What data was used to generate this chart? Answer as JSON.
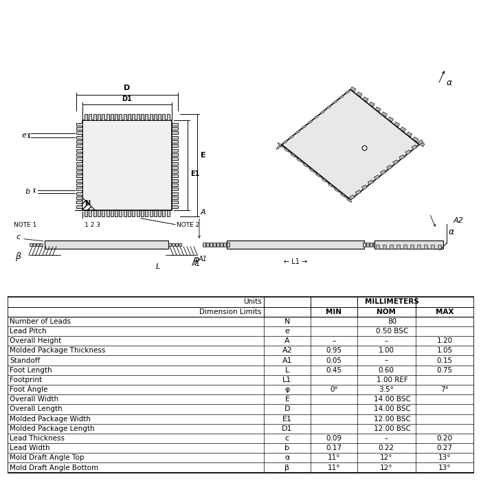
{
  "table_headers": [
    "",
    "Units",
    "MILLIMETERS",
    "",
    ""
  ],
  "table_subheaders": [
    "",
    "Dimension Limits",
    "MIN",
    "NOM",
    "MAX"
  ],
  "table_rows": [
    [
      "Number of Leads",
      "N",
      "",
      "80",
      ""
    ],
    [
      "Lead Pitch",
      "e",
      "",
      "0.50 BSC",
      ""
    ],
    [
      "Overall Height",
      "A",
      "–",
      "–",
      "1.20"
    ],
    [
      "Molded Package Thickness",
      "A2",
      "0.95",
      "1.00",
      "1.05"
    ],
    [
      "Standoff",
      "A1",
      "0.05",
      "–",
      "0.15"
    ],
    [
      "Foot Length",
      "L",
      "0.45",
      "0.60",
      "0.75"
    ],
    [
      "Footprint",
      "L1",
      "",
      "1.00 REF",
      ""
    ],
    [
      "Foot Angle",
      "φ",
      "0°",
      "3.5°",
      "7°"
    ],
    [
      "Overall Width",
      "E",
      "",
      "14.00 BSC",
      ""
    ],
    [
      "Overall Length",
      "D",
      "",
      "14.00 BSC",
      ""
    ],
    [
      "Molded Package Width",
      "E1",
      "",
      "12.00 BSC",
      ""
    ],
    [
      "Molded Package Length",
      "D1",
      "",
      "12.00 BSC",
      ""
    ],
    [
      "Lead Thickness",
      "c",
      "0.09",
      "–",
      "0.20"
    ],
    [
      "Lead Width",
      "b",
      "0.17",
      "0.22",
      "0.27"
    ],
    [
      "Mold Draft Angle Top",
      "α",
      "11°",
      "12°",
      "13°"
    ],
    [
      "Mold Draft Angle Bottom",
      "β",
      "11°",
      "12°",
      "13°"
    ]
  ],
  "bg_color": "#ffffff",
  "line_color": "#000000",
  "text_color": "#000000",
  "gray_color": "#cccccc"
}
